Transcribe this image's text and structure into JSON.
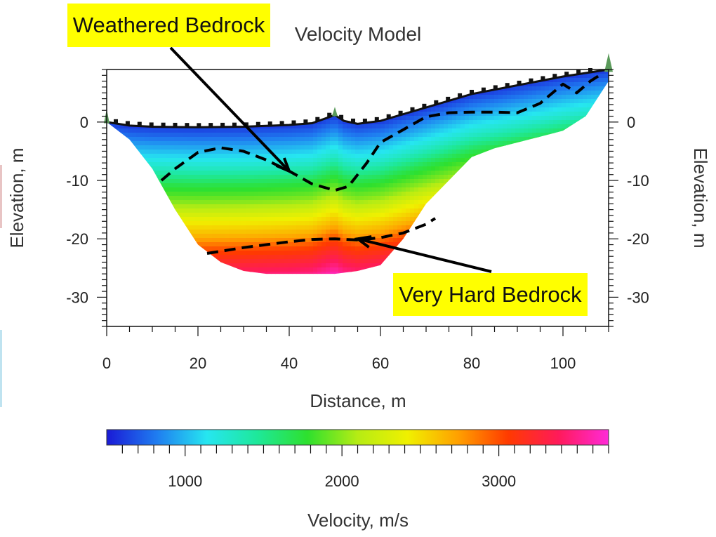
{
  "chart_data": {
    "type": "heatmap",
    "title": "Velocity Model",
    "xlabel": "Distance, m",
    "ylabel": "Elevation, m",
    "ylabel_right": "Elevation, m",
    "xlim": [
      0,
      110
    ],
    "ylim": [
      -35,
      9
    ],
    "xticks": [
      0,
      20,
      40,
      60,
      80,
      100
    ],
    "yticks": [
      0,
      -10,
      -20,
      -30
    ],
    "colorbar": {
      "label": "Velocity, m/s",
      "range": [
        500,
        3700
      ],
      "ticks": [
        1000,
        2000,
        3000
      ],
      "colors": [
        "#1a1ad6",
        "#1f7df0",
        "#26e6f0",
        "#1ee89a",
        "#2ee02e",
        "#b6ec14",
        "#f0f000",
        "#ffa000",
        "#ff3a00",
        "#ff1a5a",
        "#ff2ad8"
      ]
    },
    "surface": {
      "x": [
        0,
        5,
        10,
        20,
        30,
        40,
        45,
        50,
        52,
        55,
        60,
        70,
        80,
        90,
        100,
        110
      ],
      "elevation": [
        0,
        -0.6,
        -0.8,
        -0.9,
        -0.8,
        -0.5,
        -0.2,
        1.2,
        0.2,
        -0.3,
        0.2,
        2.5,
        4.8,
        6.3,
        7.8,
        9
      ]
    },
    "model_bottom": {
      "x": [
        0,
        5,
        10,
        15,
        20,
        25,
        30,
        35,
        40,
        45,
        50,
        55,
        60,
        65,
        70,
        75,
        80,
        85,
        90,
        95,
        100,
        105,
        110
      ],
      "elevation": [
        0,
        -3,
        -8,
        -15,
        -21,
        -24,
        -25.5,
        -26,
        -26,
        -26,
        -26,
        -25.5,
        -24.5,
        -20,
        -14,
        -10,
        -6,
        -4.5,
        -3.5,
        -2.5,
        -1.5,
        1,
        7
      ]
    },
    "velocity_profile": {
      "depth_below_surface": [
        0,
        3,
        7,
        10,
        13,
        16,
        19,
        21,
        23,
        25,
        27
      ],
      "velocity": [
        600,
        900,
        1300,
        1700,
        2000,
        2400,
        2700,
        3000,
        3200,
        3400,
        3600
      ]
    },
    "interfaces": [
      {
        "name": "Weathered Bedrock",
        "x": [
          12,
          15,
          20,
          25,
          30,
          35,
          40,
          45,
          50,
          53,
          57,
          60,
          65,
          70,
          75,
          80,
          85,
          90,
          95,
          100,
          103,
          106,
          108
        ],
        "elevation": [
          -10,
          -8,
          -5.2,
          -4.4,
          -5,
          -6.5,
          -8.4,
          -10.6,
          -11.7,
          -11,
          -7,
          -3.5,
          -1.3,
          0.9,
          1.6,
          1.7,
          1.7,
          1.6,
          3.2,
          6.5,
          5,
          7,
          8
        ]
      },
      {
        "name": "Very Hard Bedrock",
        "x": [
          22,
          26,
          30,
          35,
          40,
          45,
          50,
          55,
          60,
          65,
          70,
          72
        ],
        "elevation": [
          -22.5,
          -22,
          -21.5,
          -21,
          -20.5,
          -20.1,
          -20,
          -20.2,
          -19.8,
          -19,
          -17.5,
          -16.5
        ]
      }
    ],
    "annotations": [
      {
        "text": "Weathered Bedrock",
        "points_to": {
          "x": 40,
          "y": -8.4
        }
      },
      {
        "text": "Very Hard Bedrock",
        "points_to": {
          "x": 55,
          "y": -20
        }
      }
    ],
    "legend_placement": "bottom colorbar",
    "grid": false
  }
}
